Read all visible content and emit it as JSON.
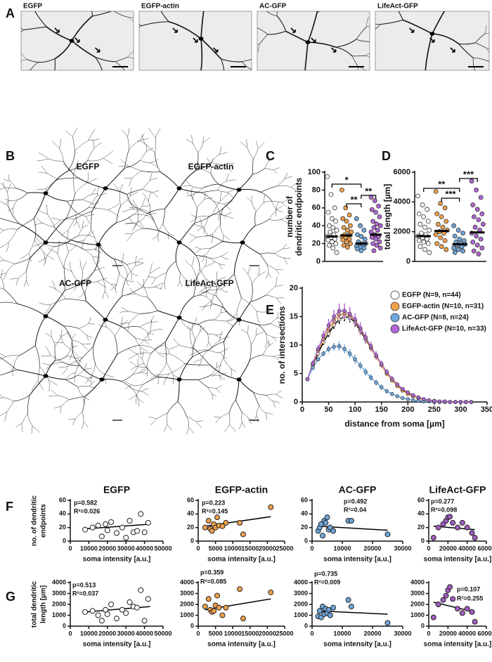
{
  "panel_labels": [
    "A",
    "B",
    "C",
    "D",
    "E",
    "F",
    "G"
  ],
  "images": [
    "EGFP",
    "EGFP-actin",
    "AC-GFP",
    "LifeAct-GFP"
  ],
  "tracings": [
    "EGFP",
    "EGFP-actin",
    "AC-GFP",
    "LifeAct-GFP"
  ],
  "chart_data": [
    {
      "type": "dot",
      "ylabel": [
        "number of",
        "dendritic endpoints"
      ],
      "ylim": [
        0,
        100
      ],
      "yticks": [
        0,
        20,
        40,
        60,
        80,
        100
      ],
      "groups": [
        {
          "color": "#ffffff",
          "mean": 28,
          "values": [
            95,
            75,
            60,
            55,
            48,
            45,
            40,
            38,
            35,
            33,
            30,
            28,
            27,
            25,
            24,
            22,
            20,
            18,
            15,
            10
          ]
        },
        {
          "color": "#f0a04b",
          "mean": 29,
          "values": [
            80,
            60,
            52,
            48,
            45,
            40,
            38,
            35,
            33,
            30,
            29,
            28,
            27,
            25,
            24,
            22,
            20,
            18,
            16
          ]
        },
        {
          "color": "#6fa8dc",
          "mean": 20,
          "values": [
            48,
            40,
            35,
            30,
            28,
            25,
            22,
            20,
            20,
            19,
            18,
            17,
            16,
            15,
            14,
            12
          ]
        },
        {
          "color": "#b266d6",
          "mean": 30,
          "values": [
            72,
            68,
            62,
            58,
            55,
            50,
            45,
            42,
            40,
            38,
            35,
            33,
            30,
            28,
            27,
            25,
            22,
            20,
            18,
            15,
            12
          ]
        }
      ],
      "brackets": [
        {
          "label": "*",
          "groups": [
            0,
            2
          ]
        },
        {
          "label": "**",
          "groups": [
            1,
            2
          ]
        },
        {
          "label": "**",
          "groups": [
            2,
            3
          ]
        }
      ]
    },
    {
      "type": "dot",
      "ylabel": [
        "total length [µm]"
      ],
      "ylim": [
        0,
        6000
      ],
      "yticks": [
        0,
        2000,
        4000,
        6000
      ],
      "groups": [
        {
          "color": "#ffffff",
          "mean": 1700,
          "values": [
            4400,
            3800,
            3500,
            3200,
            3000,
            2700,
            2500,
            2300,
            2100,
            1900,
            1800,
            1700,
            1600,
            1500,
            1400,
            1300,
            1200,
            1000,
            800,
            600
          ]
        },
        {
          "color": "#f0a04b",
          "mean": 2050,
          "values": [
            4700,
            3900,
            3600,
            3200,
            3000,
            2700,
            2500,
            2300,
            2100,
            2000,
            1900,
            1800,
            1600,
            1400,
            1200,
            1000,
            800
          ]
        },
        {
          "color": "#6fa8dc",
          "mean": 1150,
          "values": [
            2400,
            2100,
            1900,
            1700,
            1500,
            1400,
            1300,
            1200,
            1150,
            1100,
            1000,
            900,
            800,
            700,
            600
          ]
        },
        {
          "color": "#b266d6",
          "mean": 1950,
          "values": [
            5400,
            4800,
            4300,
            3800,
            3500,
            3200,
            3000,
            2800,
            2500,
            2300,
            2100,
            1900,
            1700,
            1500,
            1300,
            1100,
            900,
            700,
            500
          ]
        }
      ],
      "brackets": [
        {
          "label": "**",
          "groups": [
            0,
            2
          ]
        },
        {
          "label": "***",
          "groups": [
            1,
            2
          ]
        },
        {
          "label": "***",
          "groups": [
            2,
            3
          ]
        }
      ]
    },
    {
      "type": "line",
      "xlabel": "distance from soma [µm]",
      "ylabel": [
        "no. of intersections"
      ],
      "xlim": [
        0,
        350
      ],
      "xticks": [
        0,
        50,
        100,
        150,
        200,
        250,
        300,
        350
      ],
      "ylim": [
        0,
        20
      ],
      "yticks": [
        0,
        5,
        10,
        15,
        20
      ],
      "x": [
        10,
        20,
        30,
        40,
        50,
        60,
        70,
        80,
        90,
        100,
        110,
        120,
        130,
        140,
        150,
        160,
        170,
        180,
        190,
        200,
        210,
        220,
        230,
        240,
        250,
        260,
        270,
        280,
        290,
        300,
        310,
        320
      ],
      "series": [
        {
          "name": "EGFP (N=9, n=44)",
          "color": "#ffffff",
          "values": [
            4,
            6.5,
            8.5,
            10.5,
            12,
            13.5,
            14.5,
            15,
            14.8,
            14,
            12.5,
            11,
            9.5,
            8,
            6.5,
            5,
            4,
            3,
            2.2,
            1.6,
            1.1,
            0.8,
            0.5,
            0.3,
            0.2,
            0.1,
            0.1,
            0,
            0,
            0,
            0,
            0
          ],
          "errors": [
            0.2,
            0.3,
            0.4,
            0.5,
            0.6,
            0.7,
            0.8,
            0.8,
            0.8,
            0.8,
            0.7,
            0.7,
            0.6,
            0.5,
            0.5,
            0.4,
            0.3,
            0.3,
            0.2,
            0.2,
            0.2,
            0.1,
            0.1,
            0.1,
            0.1,
            0.1,
            0.1,
            0,
            0,
            0,
            0,
            0
          ]
        },
        {
          "name": "EGFP-actin (N=10, n=31)",
          "color": "#f0a04b",
          "values": [
            4,
            6.6,
            9,
            11,
            12.8,
            14.3,
            15.3,
            15.5,
            15.2,
            14.3,
            12.8,
            11.2,
            9.6,
            8,
            6.5,
            5,
            3.8,
            2.8,
            2,
            1.4,
            1,
            0.7,
            0.4,
            0.3,
            0.2,
            0.1,
            0.1,
            0,
            0,
            0,
            0,
            0
          ],
          "errors": [
            0.3,
            0.4,
            0.6,
            0.7,
            0.8,
            0.9,
            1,
            1,
            1,
            0.9,
            0.9,
            0.8,
            0.7,
            0.6,
            0.6,
            0.5,
            0.4,
            0.3,
            0.3,
            0.2,
            0.2,
            0.1,
            0.1,
            0.1,
            0.1,
            0.1,
            0.1,
            0,
            0,
            0,
            0,
            0
          ]
        },
        {
          "name": "AC-GFP (N=8, n=24)",
          "color": "#6fa8dc",
          "values": [
            4,
            6,
            7.5,
            8.5,
            9.3,
            9.7,
            9.8,
            9.3,
            8.5,
            7.5,
            6.4,
            5.3,
            4.3,
            3.4,
            2.6,
            1.9,
            1.4,
            1,
            0.7,
            0.5,
            0.3,
            0.2,
            0.1,
            0.1,
            0,
            0,
            0,
            0,
            0,
            0,
            0,
            0
          ],
          "errors": [
            0.2,
            0.3,
            0.4,
            0.5,
            0.6,
            0.7,
            0.8,
            0.8,
            0.8,
            0.8,
            0.7,
            0.7,
            0.6,
            0.5,
            0.5,
            0.4,
            0.3,
            0.3,
            0.2,
            0.2,
            0.2,
            0.1,
            0.1,
            0.1,
            0.1,
            0.1,
            0.1,
            0,
            0,
            0,
            0,
            0
          ]
        },
        {
          "name": "LifeAct-GFP (N=10, n=33)",
          "color": "#b266d6",
          "values": [
            4,
            6.8,
            9.3,
            11.6,
            13.5,
            15,
            16,
            16,
            15.5,
            14.5,
            13,
            11.4,
            9.8,
            8.2,
            6.7,
            5.3,
            4.1,
            3.1,
            2.3,
            1.7,
            1.2,
            0.8,
            0.5,
            0.3,
            0.2,
            0.1,
            0.1,
            0,
            0,
            0,
            0,
            0
          ],
          "errors": [
            0.3,
            0.5,
            0.7,
            0.9,
            1.1,
            1.2,
            1.3,
            1.3,
            1.2,
            1.1,
            1,
            0.9,
            0.8,
            0.7,
            0.6,
            0.5,
            0.4,
            0.3,
            0.3,
            0.2,
            0.2,
            0.1,
            0.1,
            0.1,
            0.1,
            0.1,
            0.1,
            0,
            0,
            0,
            0,
            0
          ]
        }
      ]
    },
    {
      "type": "scatter",
      "title": "EGFP",
      "ylabel": [
        "no. of dendritic",
        "endpoints"
      ],
      "xlabel": "soma intensity [a.u.]",
      "color": "#ffffff",
      "xlim": [
        0,
        50000
      ],
      "xticks": [
        0,
        10000,
        20000,
        30000,
        40000,
        50000
      ],
      "ylim": [
        0,
        60
      ],
      "yticks": [
        0,
        20,
        40,
        60
      ],
      "x": [
        8000,
        12000,
        15000,
        17000,
        19000,
        20000,
        22000,
        25000,
        28000,
        30000,
        32000,
        34000,
        36000,
        38000,
        40000,
        42000
      ],
      "y": [
        17,
        20,
        23,
        7,
        25,
        16,
        28,
        12,
        20,
        5,
        30,
        13,
        15,
        40,
        13,
        27
      ],
      "annotations": [
        "p=0.582",
        "R²=0.026"
      ],
      "trendline": {
        "x": [
          8000,
          43000
        ],
        "y": [
          18,
          25
        ]
      }
    },
    {
      "type": "scatter",
      "title": "EGFP-actin",
      "xlabel": "soma intensity [a.u.]",
      "color": "#f0a04b",
      "xlim": [
        0,
        25000
      ],
      "xticks": [
        0,
        5000,
        10000,
        15000,
        20000,
        25000
      ],
      "ylim": [
        0,
        60
      ],
      "yticks": [
        0,
        20,
        40,
        60
      ],
      "x": [
        2000,
        3000,
        3500,
        4000,
        4500,
        5000,
        5500,
        6000,
        7000,
        8000,
        12000,
        13000,
        21000
      ],
      "y": [
        20,
        30,
        18,
        15,
        25,
        20,
        35,
        23,
        22,
        27,
        27,
        10,
        50
      ],
      "annotations": [
        "p=0.223",
        "R²=0.145"
      ],
      "trendline": {
        "x": [
          2000,
          21000
        ],
        "y": [
          22,
          36
        ]
      }
    },
    {
      "type": "scatter",
      "title": "AC-GFP",
      "xlabel": "soma intensity [a.u.]",
      "color": "#6fa8dc",
      "xlim": [
        0,
        30000
      ],
      "xticks": [
        0,
        10000,
        20000,
        30000
      ],
      "ylim": [
        0,
        60
      ],
      "yticks": [
        0,
        20,
        40,
        60
      ],
      "x": [
        2000,
        2500,
        3000,
        3500,
        4000,
        4500,
        5000,
        5500,
        6000,
        7000,
        12000,
        13000,
        25000
      ],
      "y": [
        15,
        20,
        25,
        8,
        30,
        27,
        35,
        17,
        20,
        15,
        30,
        30,
        10
      ],
      "annotations": [
        "p=0.492",
        "R²=0.04"
      ],
      "trendline": {
        "x": [
          2000,
          25000
        ],
        "y": [
          22,
          16
        ]
      }
    },
    {
      "type": "scatter",
      "title": "LifeAct-GFP",
      "xlabel": "soma intensity [a.u.]",
      "color": "#a05cc0",
      "xlim": [
        0,
        60000
      ],
      "xticks": [
        0,
        20000,
        40000,
        60000
      ],
      "ylim": [
        0,
        60
      ],
      "yticks": [
        0,
        20,
        40,
        60
      ],
      "x": [
        5000,
        10000,
        15000,
        18000,
        20000,
        22000,
        25000,
        30000,
        35000,
        40000,
        45000,
        48000
      ],
      "y": [
        5,
        20,
        25,
        30,
        35,
        36,
        27,
        20,
        27,
        20,
        12,
        5
      ],
      "annotations": [
        "p=0.277",
        "R²=0.098"
      ],
      "trendline": {
        "x": [
          5000,
          48000
        ],
        "y": [
          22,
          17
        ]
      }
    },
    {
      "type": "scatter",
      "ylabel": [
        "total dendritic",
        "length [µm]"
      ],
      "xlabel": "soma intensity [a.u.]",
      "color": "#ffffff",
      "xlim": [
        0,
        50000
      ],
      "xticks": [
        0,
        10000,
        20000,
        30000,
        40000,
        50000
      ],
      "ylim": [
        0,
        4000
      ],
      "yticks": [
        0,
        1000,
        2000,
        3000,
        4000
      ],
      "x": [
        8000,
        12000,
        15000,
        17000,
        19000,
        20000,
        22000,
        25000,
        28000,
        30000,
        32000,
        34000,
        36000,
        38000,
        40000,
        42000
      ],
      "y": [
        1300,
        1400,
        1000,
        500,
        1500,
        1100,
        2000,
        700,
        1500,
        1200,
        2200,
        1800,
        1700,
        3300,
        500,
        2500
      ],
      "annotations": [
        "p=0.513",
        "R²=0.037"
      ],
      "trendline": {
        "x": [
          8000,
          43000
        ],
        "y": [
          1300,
          1800
        ]
      }
    },
    {
      "type": "scatter",
      "xlabel": "soma intensity [a.u.]",
      "color": "#f0a04b",
      "xlim": [
        0,
        25000
      ],
      "xticks": [
        0,
        5000,
        10000,
        15000,
        20000,
        25000
      ],
      "ylim": [
        0,
        4000
      ],
      "yticks": [
        0,
        1000,
        2000,
        3000,
        4000
      ],
      "x": [
        2000,
        3000,
        3500,
        4000,
        4500,
        5000,
        5500,
        6000,
        7000,
        8000,
        12000,
        13000,
        21000
      ],
      "y": [
        1800,
        2500,
        1500,
        1300,
        1400,
        1900,
        2800,
        1700,
        1000,
        1700,
        3400,
        700,
        3100
      ],
      "annotations": [
        "p=0.359",
        "R²=0.085"
      ],
      "trendline": {
        "x": [
          2000,
          21000
        ],
        "y": [
          1500,
          2500
        ]
      }
    },
    {
      "type": "scatter",
      "xlabel": "soma intensity [a.u.]",
      "color": "#6fa8dc",
      "xlim": [
        0,
        30000
      ],
      "xticks": [
        0,
        10000,
        20000,
        30000
      ],
      "ylim": [
        0,
        4000
      ],
      "yticks": [
        0,
        1000,
        2000,
        3000,
        4000
      ],
      "x": [
        2000,
        2500,
        3000,
        3500,
        4000,
        4500,
        5000,
        5500,
        6000,
        7000,
        12000,
        13000,
        25000
      ],
      "y": [
        900,
        1400,
        800,
        1800,
        1100,
        1600,
        1200,
        1500,
        1000,
        1700,
        2400,
        1800,
        300
      ],
      "annotations": [
        "p=0.735",
        "R²=0.009"
      ],
      "trendline": {
        "x": [
          2000,
          25000
        ],
        "y": [
          1400,
          1100
        ]
      }
    },
    {
      "type": "scatter",
      "xlabel": "soma intensity [a.u.]",
      "color": "#a05cc0",
      "xlim": [
        0,
        60000
      ],
      "xticks": [
        0,
        20000,
        40000,
        60000
      ],
      "ylim": [
        0,
        4000
      ],
      "yticks": [
        0,
        1000,
        2000,
        3000,
        4000
      ],
      "x": [
        5000,
        10000,
        15000,
        18000,
        20000,
        22000,
        25000,
        30000,
        35000,
        40000,
        45000,
        48000
      ],
      "y": [
        800,
        2000,
        2400,
        2800,
        3300,
        3600,
        2500,
        1600,
        1200,
        1600,
        1300,
        400
      ],
      "annotations": [
        "p=0.107",
        "R²=0.255"
      ],
      "trendline": {
        "x": [
          5000,
          48000
        ],
        "y": [
          2200,
          1300
        ]
      }
    }
  ]
}
